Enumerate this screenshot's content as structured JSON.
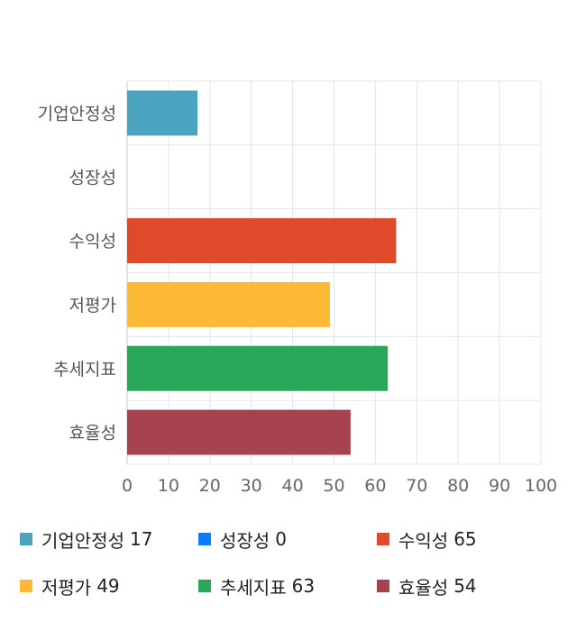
{
  "chart_data": {
    "type": "bar",
    "orientation": "horizontal",
    "categories": [
      "기업안정성",
      "성장성",
      "수익성",
      "저평가",
      "추세지표",
      "효율성"
    ],
    "values": [
      17,
      0,
      65,
      49,
      63,
      54
    ],
    "colors": [
      "#4aa3bf",
      "#0a7cff",
      "#e04a2a",
      "#fbb935",
      "#2aa85a",
      "#a8424f"
    ],
    "xlim": [
      0,
      100
    ],
    "xticks": [
      0,
      10,
      20,
      30,
      40,
      50,
      60,
      70,
      80,
      90,
      100
    ],
    "grid": true,
    "legend_position": "bottom"
  },
  "legend": {
    "items": [
      {
        "label": "기업안정성",
        "value": "17",
        "color": "#4aa3bf"
      },
      {
        "label": "성장성",
        "value": "0",
        "color": "#0a7cff"
      },
      {
        "label": "수익성",
        "value": "65",
        "color": "#e04a2a"
      },
      {
        "label": "저평가",
        "value": "49",
        "color": "#fbb935"
      },
      {
        "label": "추세지표",
        "value": "63",
        "color": "#2aa85a"
      },
      {
        "label": "효율성",
        "value": "54",
        "color": "#a8424f"
      }
    ]
  }
}
